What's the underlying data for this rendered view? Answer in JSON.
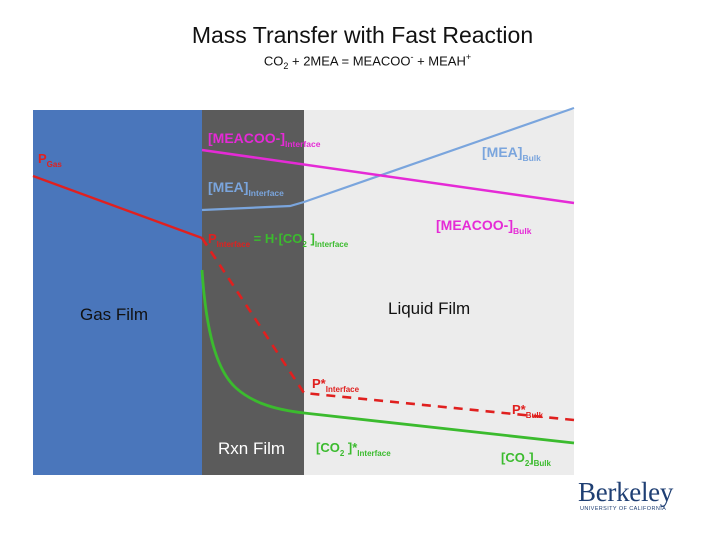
{
  "title": "Mass Transfer with Fast Reaction",
  "equation": {
    "part1": "CO",
    "sub1": "2",
    "part2": " + 2MEA = MEACOO",
    "sup1": "-",
    "part3": " + MEAH",
    "sup2": "+"
  },
  "regions": {
    "gas_film": "Gas Film",
    "rxn_film": "Rxn Film",
    "liquid_film": "Liquid Film"
  },
  "labels": {
    "p_gas": {
      "main": "P",
      "sub": "Gas"
    },
    "meacoo_interface": {
      "main": "[MEACOO-]",
      "sub": "Interface"
    },
    "mea_bulk": {
      "main": "[MEA]",
      "sub": "Bulk"
    },
    "mea_interface": {
      "main": "[MEA]",
      "sub": "Interface"
    },
    "meacoo_bulk": {
      "main": "[MEACOO-]",
      "sub": "Bulk"
    },
    "p_interface": {
      "main": "P",
      "sub": "Interface",
      "eq": " = H·[CO",
      "sub2": "2",
      "rest": " ]",
      "sub3": "Interface"
    },
    "p_star_interface": {
      "main": "P*",
      "sub": "Interface"
    },
    "p_star_bulk": {
      "main": "P*",
      "sub": "Bulk"
    },
    "co2_star_interface": {
      "main": "[CO",
      "sub": "2",
      "mid": " ]*",
      "sub2": "Interface"
    },
    "co2_bulk": {
      "main": "[CO",
      "sub": "2",
      "mid": "]",
      "sub2": "Bulk"
    }
  },
  "colors": {
    "gas_film": "#4a76bb",
    "rxn_film": "#5b5b5b",
    "liquid_film": "#ececec",
    "red": "#e0201f",
    "magenta": "#e52ad6",
    "blue_line": "#7aa5dd",
    "green": "#3bbb2e",
    "logo": "#1f3f73"
  },
  "logo": {
    "word": "Berkeley",
    "subtitle": "UNIVERSITY OF CALIFORNIA"
  }
}
